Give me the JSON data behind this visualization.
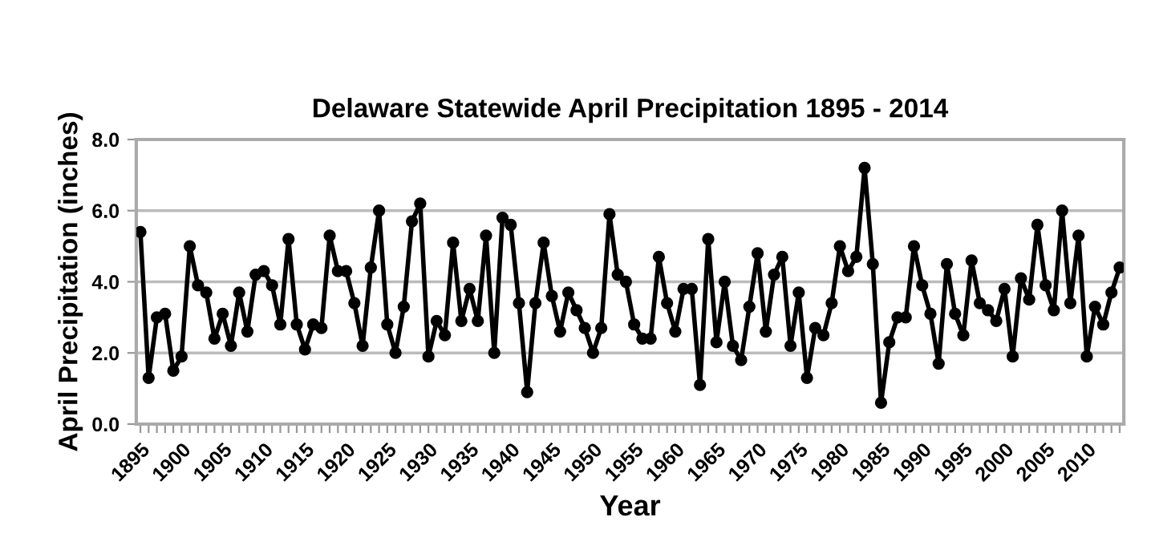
{
  "chart_data": {
    "type": "line",
    "title": "Delaware Statewide April Precipitation 1895 - 2014",
    "xlabel": "Year",
    "ylabel": "April Precipitation (inches)",
    "x": [
      1895,
      1896,
      1897,
      1898,
      1899,
      1900,
      1901,
      1902,
      1903,
      1904,
      1905,
      1906,
      1907,
      1908,
      1909,
      1910,
      1911,
      1912,
      1913,
      1914,
      1915,
      1916,
      1917,
      1918,
      1919,
      1920,
      1921,
      1922,
      1923,
      1924,
      1925,
      1926,
      1927,
      1928,
      1929,
      1930,
      1931,
      1932,
      1933,
      1934,
      1935,
      1936,
      1937,
      1938,
      1939,
      1940,
      1941,
      1942,
      1943,
      1944,
      1945,
      1946,
      1947,
      1948,
      1949,
      1950,
      1951,
      1952,
      1953,
      1954,
      1955,
      1956,
      1957,
      1958,
      1959,
      1960,
      1961,
      1962,
      1963,
      1964,
      1965,
      1966,
      1967,
      1968,
      1969,
      1970,
      1971,
      1972,
      1973,
      1974,
      1975,
      1976,
      1977,
      1978,
      1979,
      1980,
      1981,
      1982,
      1983,
      1984,
      1985,
      1986,
      1987,
      1988,
      1989,
      1990,
      1991,
      1992,
      1993,
      1994,
      1995,
      1996,
      1997,
      1998,
      1999,
      2000,
      2001,
      2002,
      2003,
      2004,
      2005,
      2006,
      2007,
      2008,
      2009,
      2010,
      2011,
      2012,
      2013,
      2014
    ],
    "series": [
      {
        "color": "#000000",
        "values": [
          5.4,
          1.3,
          3.0,
          3.1,
          1.5,
          1.9,
          5.0,
          3.9,
          3.7,
          2.4,
          3.1,
          2.2,
          3.7,
          2.6,
          4.2,
          4.3,
          3.9,
          2.8,
          5.2,
          2.8,
          2.1,
          2.8,
          2.7,
          5.3,
          4.3,
          4.3,
          3.4,
          2.2,
          4.4,
          6.0,
          2.8,
          2.0,
          3.3,
          5.7,
          6.2,
          1.9,
          2.9,
          2.5,
          5.1,
          2.9,
          3.8,
          2.9,
          5.3,
          2.0,
          5.8,
          5.6,
          3.4,
          0.9,
          3.4,
          5.1,
          3.6,
          2.6,
          3.7,
          3.2,
          2.7,
          2.0,
          2.7,
          5.9,
          4.2,
          4.0,
          2.8,
          2.4,
          2.4,
          4.7,
          3.4,
          2.6,
          3.8,
          3.8,
          1.1,
          5.2,
          2.3,
          4.0,
          2.2,
          1.8,
          3.3,
          4.8,
          2.6,
          4.2,
          4.7,
          2.2,
          3.7,
          1.3,
          2.7,
          2.5,
          3.4,
          5.0,
          4.3,
          4.7,
          7.2,
          4.5,
          0.6,
          2.3,
          3.0,
          3.0,
          5.0,
          3.9,
          3.1,
          1.7,
          4.5,
          3.1,
          2.5,
          4.6,
          3.4,
          3.2,
          2.9,
          3.8,
          1.9,
          4.1,
          3.5,
          5.6,
          3.9,
          3.2,
          6.0,
          3.4,
          5.3,
          1.9,
          3.3,
          2.8,
          3.7,
          4.4
        ]
      }
    ],
    "xlim": [
      1894.5,
      2014.5
    ],
    "xticks": [
      1895,
      {
        "value": 1896,
        "label": null
      },
      {
        "value": 1897,
        "label": null
      },
      {
        "value": 1898,
        "label": null
      },
      {
        "value": 1899,
        "label": null
      },
      1900,
      {
        "value": 1901,
        "label": null
      },
      {
        "value": 1902,
        "label": null
      },
      {
        "value": 1903,
        "label": null
      },
      {
        "value": 1904,
        "label": null
      },
      1905,
      {
        "value": 1906,
        "label": null
      },
      {
        "value": 1907,
        "label": null
      },
      {
        "value": 1908,
        "label": null
      },
      {
        "value": 1909,
        "label": null
      },
      1910,
      {
        "value": 1911,
        "label": null
      },
      {
        "value": 1912,
        "label": null
      },
      {
        "value": 1913,
        "label": null
      },
      {
        "value": 1914,
        "label": null
      },
      1915,
      {
        "value": 1916,
        "label": null
      },
      {
        "value": 1917,
        "label": null
      },
      {
        "value": 1918,
        "label": null
      },
      {
        "value": 1919,
        "label": null
      },
      1920,
      {
        "value": 1921,
        "label": null
      },
      {
        "value": 1922,
        "label": null
      },
      {
        "value": 1923,
        "label": null
      },
      {
        "value": 1924,
        "label": null
      },
      1925,
      {
        "value": 1926,
        "label": null
      },
      {
        "value": 1927,
        "label": null
      },
      {
        "value": 1928,
        "label": null
      },
      {
        "value": 1929,
        "label": null
      },
      1930,
      {
        "value": 1931,
        "label": null
      },
      {
        "value": 1932,
        "label": null
      },
      {
        "value": 1933,
        "label": null
      },
      {
        "value": 1934,
        "label": null
      },
      1935,
      {
        "value": 1936,
        "label": null
      },
      {
        "value": 1937,
        "label": null
      },
      {
        "value": 1938,
        "label": null
      },
      {
        "value": 1939,
        "label": null
      },
      1940,
      {
        "value": 1941,
        "label": null
      },
      {
        "value": 1942,
        "label": null
      },
      {
        "value": 1943,
        "label": null
      },
      {
        "value": 1944,
        "label": null
      },
      1945,
      {
        "value": 1946,
        "label": null
      },
      {
        "value": 1947,
        "label": null
      },
      {
        "value": 1948,
        "label": null
      },
      {
        "value": 1949,
        "label": null
      },
      1950,
      {
        "value": 1951,
        "label": null
      },
      {
        "value": 1952,
        "label": null
      },
      {
        "value": 1953,
        "label": null
      },
      {
        "value": 1954,
        "label": null
      },
      1955,
      {
        "value": 1956,
        "label": null
      },
      {
        "value": 1957,
        "label": null
      },
      {
        "value": 1958,
        "label": null
      },
      {
        "value": 1959,
        "label": null
      },
      1960,
      {
        "value": 1961,
        "label": null
      },
      {
        "value": 1962,
        "label": null
      },
      {
        "value": 1963,
        "label": null
      },
      {
        "value": 1964,
        "label": null
      },
      1965,
      {
        "value": 1966,
        "label": null
      },
      {
        "value": 1967,
        "label": null
      },
      {
        "value": 1968,
        "label": null
      },
      {
        "value": 1969,
        "label": null
      },
      1970,
      {
        "value": 1971,
        "label": null
      },
      {
        "value": 1972,
        "label": null
      },
      {
        "value": 1973,
        "label": null
      },
      {
        "value": 1974,
        "label": null
      },
      1975,
      {
        "value": 1976,
        "label": null
      },
      {
        "value": 1977,
        "label": null
      },
      {
        "value": 1978,
        "label": null
      },
      {
        "value": 1979,
        "label": null
      },
      1980,
      {
        "value": 1981,
        "label": null
      },
      {
        "value": 1982,
        "label": null
      },
      {
        "value": 1983,
        "label": null
      },
      {
        "value": 1984,
        "label": null
      },
      1985,
      {
        "value": 1986,
        "label": null
      },
      {
        "value": 1987,
        "label": null
      },
      {
        "value": 1988,
        "label": null
      },
      {
        "value": 1989,
        "label": null
      },
      1990,
      {
        "value": 1991,
        "label": null
      },
      {
        "value": 1992,
        "label": null
      },
      {
        "value": 1993,
        "label": null
      },
      {
        "value": 1994,
        "label": null
      },
      1995,
      {
        "value": 1996,
        "label": null
      },
      {
        "value": 1997,
        "label": null
      },
      {
        "value": 1998,
        "label": null
      },
      {
        "value": 1999,
        "label": null
      },
      2000,
      {
        "value": 2001,
        "label": null
      },
      {
        "value": 2002,
        "label": null
      },
      {
        "value": 2003,
        "label": null
      },
      {
        "value": 2004,
        "label": null
      },
      2005,
      {
        "value": 2006,
        "label": null
      },
      {
        "value": 2007,
        "label": null
      },
      {
        "value": 2008,
        "label": null
      },
      {
        "value": 2009,
        "label": null
      },
      2010,
      {
        "value": 2011,
        "label": null
      },
      {
        "value": 2012,
        "label": null
      },
      {
        "value": 2013,
        "label": null
      },
      {
        "value": 2014,
        "label": null
      }
    ],
    "ylim": [
      0,
      8
    ],
    "yticks": [
      {
        "value": 0,
        "label": "0.0"
      },
      {
        "value": 2,
        "label": "2.0"
      },
      {
        "value": 4,
        "label": "4.0"
      },
      {
        "value": 6,
        "label": "6.0"
      },
      {
        "value": 8,
        "label": "8.0"
      }
    ],
    "grid": "y",
    "marker": "circle",
    "line_style": "solid"
  }
}
